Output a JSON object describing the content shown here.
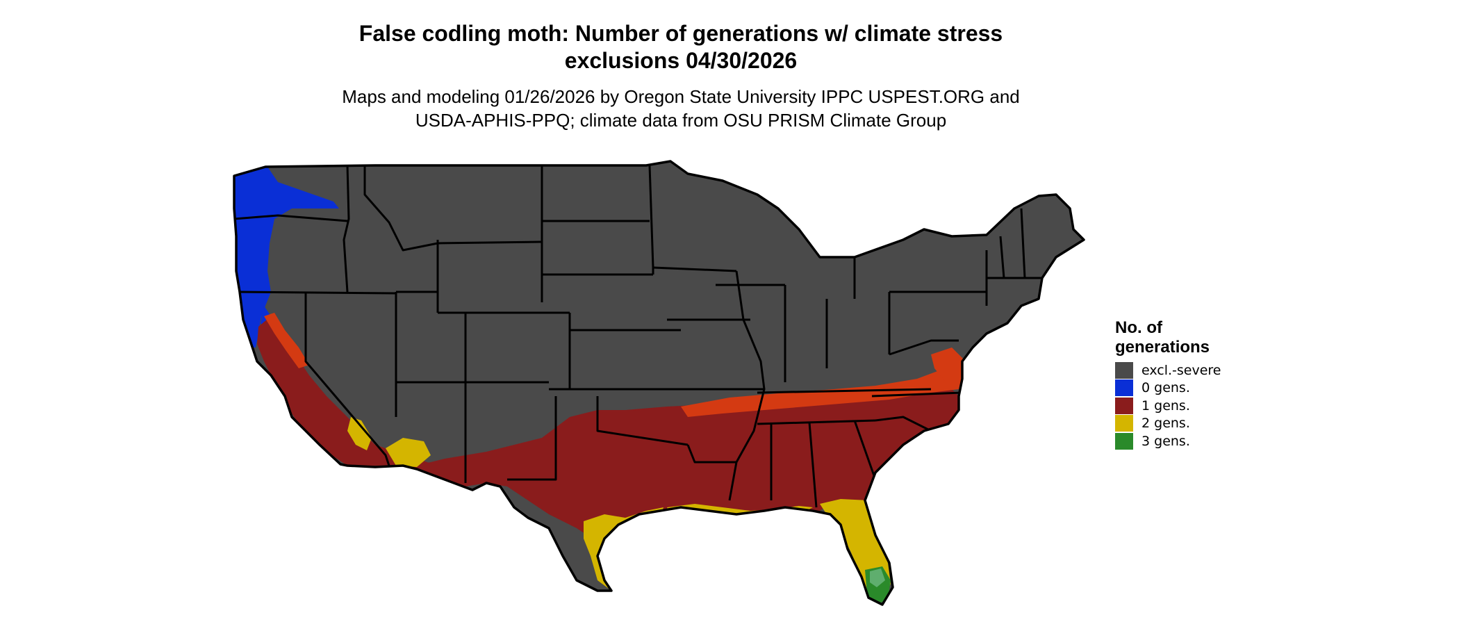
{
  "title": {
    "line1": "False codling moth: Number of generations w/ climate stress",
    "line2": "exclusions 04/30/2026"
  },
  "subtitle": {
    "line1": "Maps and modeling 01/26/2026 by Oregon State University IPPC USPEST.ORG and",
    "line2": "USDA-APHIS-PPQ; climate data from OSU PRISM Climate Group"
  },
  "legend": {
    "title_line1": "No. of",
    "title_line2": "generations",
    "items": [
      {
        "label": "excl.-severe",
        "color": "#4a4a4a"
      },
      {
        "label": "0 gens.",
        "color": "#0a2fd6"
      },
      {
        "label": "1 gens.",
        "color": "#8a1c1c"
      },
      {
        "label": "2 gens.",
        "color": "#d4b500"
      },
      {
        "label": "3 gens.",
        "color": "#2a8a2a"
      }
    ]
  },
  "colors": {
    "excluded": "#4a4a4a",
    "gen0": "#0a2fd6",
    "gen1": "#8a1c1c",
    "gen1_fringe": "#d43a12",
    "gen2": "#d4b500",
    "gen3": "#2a8a2a",
    "gen3_light": "#5fae6e",
    "border": "#000000"
  }
}
